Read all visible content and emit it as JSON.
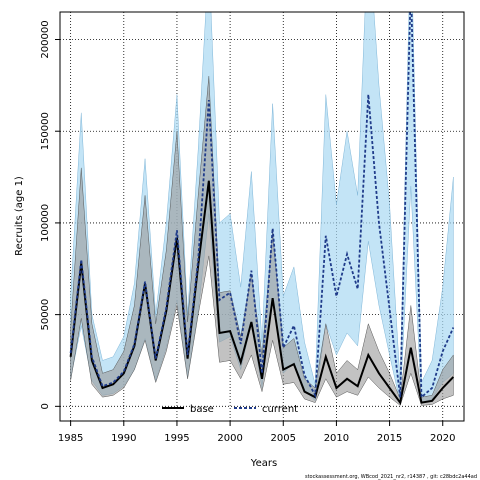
{
  "chart_data": {
    "type": "line",
    "xlabel": "Years",
    "ylabel": "Recruits (age 1)",
    "footer": "stockassessment.org, WBcod_2021_nr2, r14387 , git: c28bdc2a44ad",
    "xlim": [
      1984,
      2022
    ],
    "ylim": [
      -8000,
      215000
    ],
    "xticks": [
      1985,
      1990,
      1995,
      2000,
      2005,
      2010,
      2015,
      2020
    ],
    "yticks": [
      0,
      50000,
      100000,
      150000,
      200000
    ],
    "grid": true,
    "legend_position": "bottom-center",
    "x": [
      1985,
      1986,
      1987,
      1988,
      1989,
      1990,
      1991,
      1992,
      1993,
      1994,
      1995,
      1996,
      1997,
      1998,
      1999,
      2000,
      2001,
      2002,
      2003,
      2004,
      2005,
      2006,
      2007,
      2008,
      2009,
      2010,
      2011,
      2012,
      2013,
      2014,
      2015,
      2016,
      2017,
      2018,
      2019,
      2020,
      2021
    ],
    "series": [
      {
        "name": "base",
        "color": "#000000",
        "band_color": "#9a9a9a",
        "values": [
          27000,
          78000,
          25000,
          10000,
          12000,
          18000,
          33000,
          67000,
          25000,
          52000,
          92000,
          26000,
          77000,
          123000,
          40000,
          41000,
          24000,
          46000,
          15000,
          59000,
          20000,
          23000,
          8000,
          5000,
          27000,
          10000,
          15000,
          11000,
          28000,
          18000,
          10000,
          2000,
          32000,
          2000,
          3000,
          10000,
          16000
        ],
        "lower": [
          14000,
          48000,
          12000,
          5000,
          6000,
          10000,
          20000,
          36000,
          13000,
          30000,
          55000,
          15000,
          50000,
          82000,
          24000,
          25000,
          15000,
          28000,
          8000,
          36000,
          12000,
          13000,
          4000,
          2000,
          15000,
          5000,
          8000,
          6000,
          16000,
          10000,
          5000,
          500,
          18000,
          500,
          1000,
          4000,
          6000
        ],
        "upper": [
          42000,
          130000,
          45000,
          18000,
          20000,
          30000,
          55000,
          115000,
          45000,
          85000,
          150000,
          46000,
          115000,
          180000,
          62000,
          63000,
          38000,
          72000,
          28000,
          95000,
          32000,
          37000,
          15000,
          10000,
          45000,
          18000,
          25000,
          20000,
          45000,
          30000,
          18000,
          4000,
          55000,
          5000,
          6000,
          20000,
          28000
        ]
      },
      {
        "name": "current",
        "color": "#1f3b8a",
        "band_color": "#a9d8f2",
        "values": [
          29000,
          80000,
          27000,
          11000,
          13000,
          19000,
          34000,
          68000,
          26000,
          54000,
          96000,
          28000,
          80000,
          167000,
          58000,
          62000,
          34000,
          74000,
          18000,
          97000,
          32000,
          44000,
          17000,
          6000,
          93000,
          60000,
          83000,
          64000,
          170000,
          100000,
          53000,
          5000,
          230000,
          5000,
          10000,
          30000,
          43000
        ],
        "lower": [
          15000,
          44000,
          14000,
          6000,
          7000,
          11000,
          20000,
          37000,
          14000,
          32000,
          58000,
          16000,
          52000,
          105000,
          35000,
          38000,
          20000,
          45000,
          10000,
          58000,
          18000,
          24000,
          9000,
          3000,
          45000,
          28000,
          40000,
          33000,
          90000,
          55000,
          28000,
          2000,
          120000,
          2000,
          4000,
          13000,
          18000
        ],
        "upper": [
          60000,
          160000,
          50000,
          25000,
          27000,
          38000,
          67000,
          135000,
          50000,
          100000,
          170000,
          50000,
          140000,
          245000,
          100000,
          105000,
          65000,
          128000,
          35000,
          165000,
          60000,
          76000,
          35000,
          12000,
          170000,
          110000,
          150000,
          115000,
          260000,
          175000,
          110000,
          12000,
          260000,
          13000,
          25000,
          65000,
          125000
        ]
      }
    ]
  }
}
